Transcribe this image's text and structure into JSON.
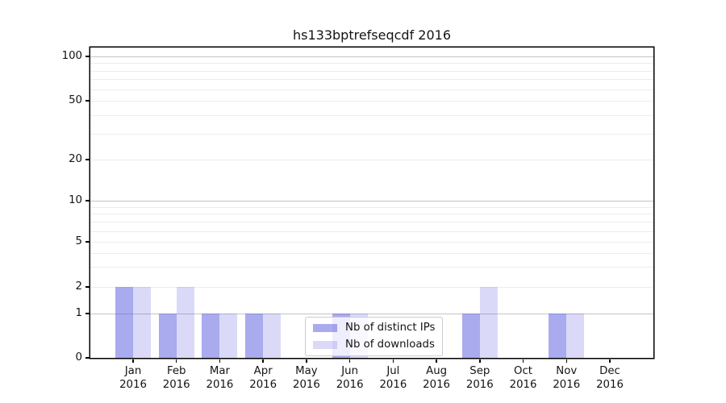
{
  "chart_data": {
    "type": "bar",
    "title": "hs133bptrefseqcdf 2016",
    "categories": [
      "Jan\n2016",
      "Feb\n2016",
      "Mar\n2016",
      "Apr\n2016",
      "May\n2016",
      "Jun\n2016",
      "Jul\n2016",
      "Aug\n2016",
      "Sep\n2016",
      "Oct\n2016",
      "Nov\n2016",
      "Dec\n2016"
    ],
    "series": [
      {
        "name": "Nb of distinct IPs",
        "color": "rgba(86,86,224,0.50)",
        "solid_color": "#a8a8ef",
        "values": [
          2,
          1,
          1,
          1,
          0,
          1,
          0,
          0,
          1,
          0,
          1,
          0
        ]
      },
      {
        "name": "Nb of downloads",
        "color": "rgba(86,86,224,0.22)",
        "solid_color": "#d9d9f7",
        "values": [
          2,
          2,
          1,
          1,
          0,
          1,
          0,
          0,
          2,
          0,
          1,
          0
        ]
      }
    ],
    "xlabel": "",
    "ylabel": "",
    "yscale": "symlog",
    "ylim": [
      0,
      115
    ],
    "yticks": [
      {
        "value": 0,
        "label": "0"
      },
      {
        "value": 1,
        "label": "1"
      },
      {
        "value": 2,
        "label": "2"
      },
      {
        "value": 5,
        "label": "5"
      },
      {
        "value": 10,
        "label": "10"
      },
      {
        "value": 20,
        "label": "20"
      },
      {
        "value": 50,
        "label": "50"
      },
      {
        "value": 100,
        "label": "100"
      }
    ],
    "y_major_gridlines": [
      1,
      10,
      100
    ],
    "y_minor_gridlines": [
      2,
      3,
      4,
      5,
      6,
      7,
      8,
      9,
      20,
      30,
      40,
      50,
      60,
      70,
      80,
      90
    ],
    "grid": "both",
    "legend_position": "lower center"
  },
  "colors": {
    "background": "#ffffff",
    "spine": "#000000",
    "text": "#141414",
    "major_grid": "#c4c4c4",
    "minor_grid": "#ececec",
    "legend_border": "#cccccc"
  }
}
